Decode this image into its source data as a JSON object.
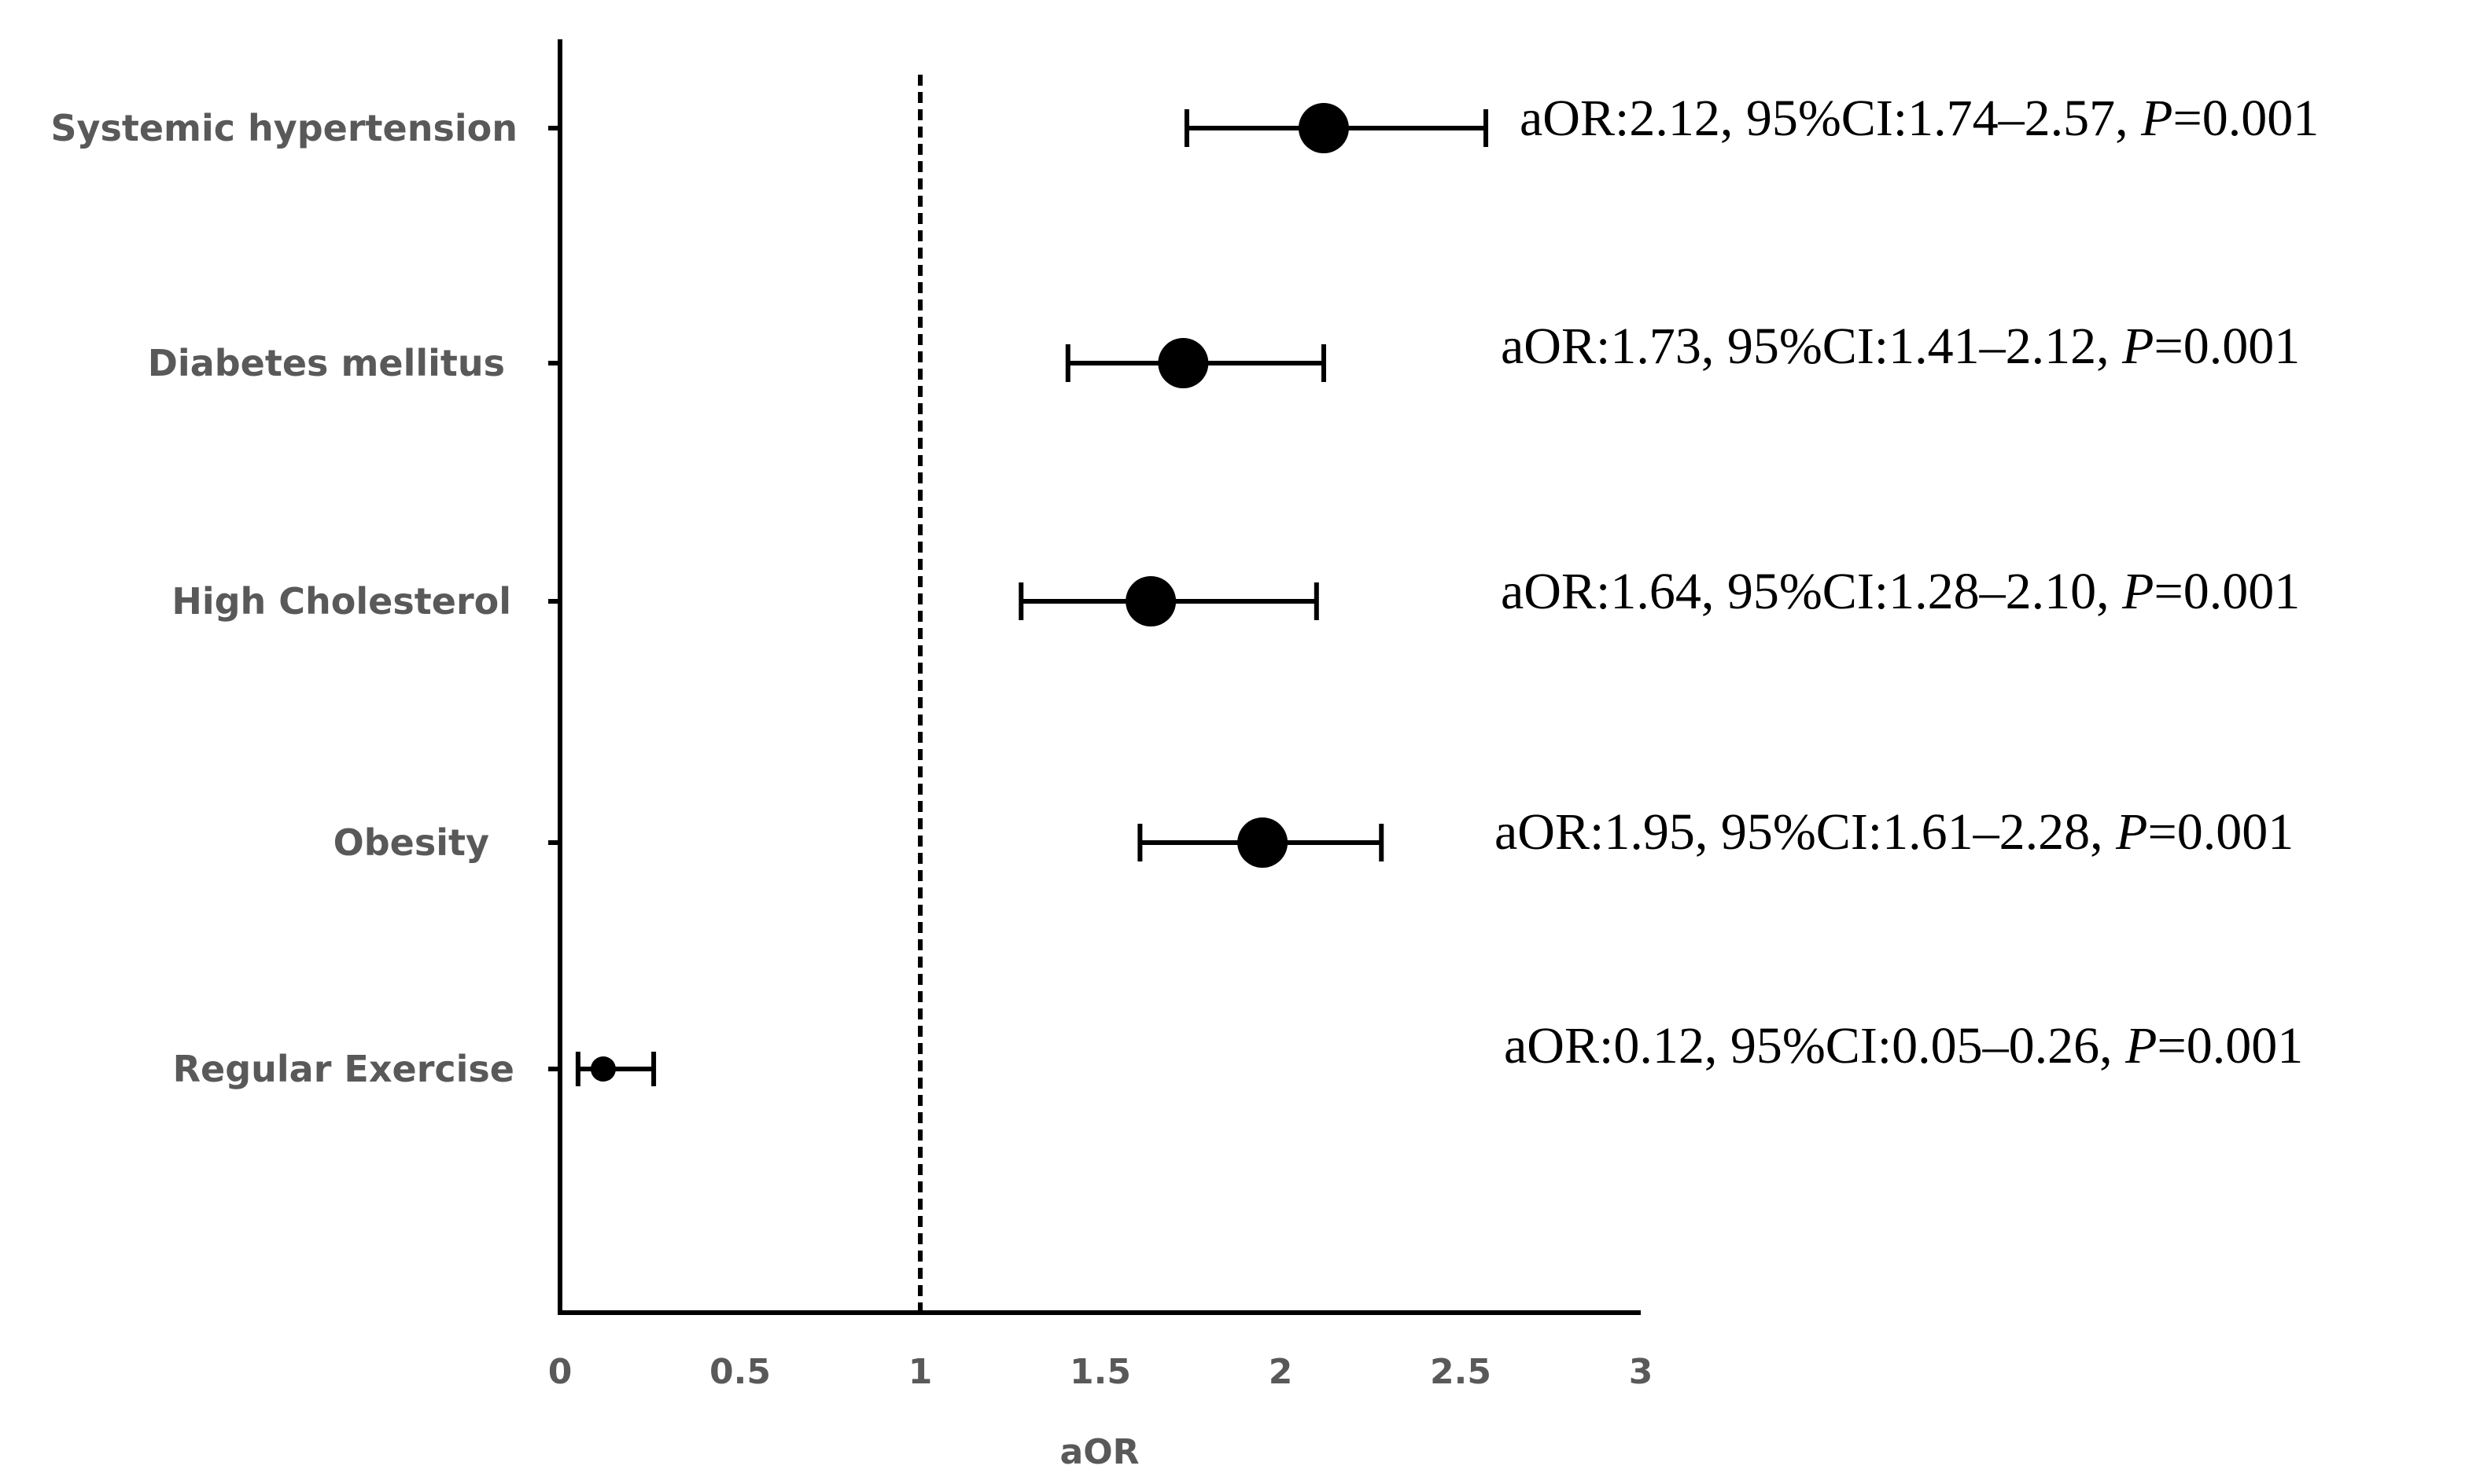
{
  "chart_data": {
    "type": "forest",
    "title": "",
    "xlabel": "aOR",
    "ylabel": "",
    "xlim": [
      0,
      3
    ],
    "xticks": [
      "0",
      "0.5",
      "1",
      "1.5",
      "2",
      "2.5",
      "3"
    ],
    "reference_line": 1,
    "grid": false,
    "legend": "none",
    "rows": [
      {
        "label": "Systemic hypertension",
        "aor": 2.12,
        "ci_low": 1.74,
        "ci_high": 2.57,
        "annotation_pre": "aOR:2.12, 95%CI:1.74–2.57, ",
        "p_symbol": "P",
        "annotation_post": "=0.001"
      },
      {
        "label": "Diabetes mellitus",
        "aor": 1.73,
        "ci_low": 1.41,
        "ci_high": 2.12,
        "annotation_pre": "aOR:1.73, 95%CI:1.41–2.12, ",
        "p_symbol": "P",
        "annotation_post": "=0.001"
      },
      {
        "label": "High Cholesterol",
        "aor": 1.64,
        "ci_low": 1.28,
        "ci_high": 2.1,
        "annotation_pre": "aOR:1.64, 95%CI:1.28–2.10, ",
        "p_symbol": "P",
        "annotation_post": "=0.001"
      },
      {
        "label": "Obesity",
        "aor": 1.95,
        "ci_low": 1.61,
        "ci_high": 2.28,
        "annotation_pre": "aOR:1.95, 95%CI:1.61–2.28, ",
        "p_symbol": "P",
        "annotation_post": "=0.001"
      },
      {
        "label": "Regular Exercise",
        "aor": 0.12,
        "ci_low": 0.05,
        "ci_high": 0.26,
        "annotation_pre": "aOR:0.12, 95%CI:0.05–0.26, ",
        "p_symbol": "P",
        "annotation_post": "=0.001"
      }
    ],
    "colors": {
      "marker": "#000000",
      "axis": "#000000",
      "label_text": "#595959",
      "reference_line": "#000000"
    }
  }
}
